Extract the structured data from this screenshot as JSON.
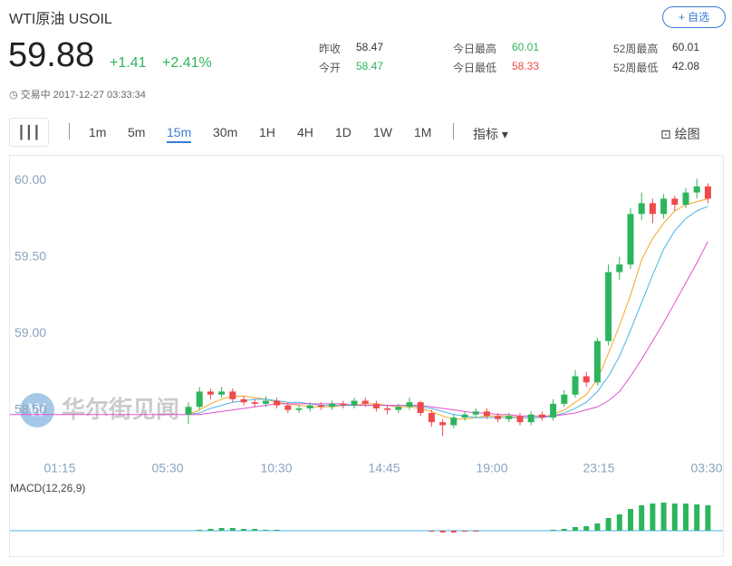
{
  "header": {
    "title": "WTI原油 USOIL",
    "watch_button": "+ 自选",
    "price": "59.88",
    "change": "+1.41",
    "change_pct": "+2.41%",
    "status": "交易中 2017-12-27 03:33:34",
    "stats": [
      {
        "label": "昨收",
        "value": 58.47
      },
      {
        "label": "今开",
        "value": 58.47
      },
      {
        "label": "今日最高",
        "value": 60.01
      },
      {
        "label": "今日最低",
        "value": 58.33
      },
      {
        "label": "52周最高",
        "value": 60.01
      },
      {
        "label": "52周最低",
        "value": 42.08
      }
    ]
  },
  "toolbar": {
    "periods": [
      "1m",
      "5m",
      "15m",
      "30m",
      "1H",
      "4H",
      "1D",
      "1W",
      "1M"
    ],
    "active": "15m",
    "indicator": "指标",
    "draw": "绘图"
  },
  "watermark": "华尔街见闻",
  "chart_data": [
    {
      "type": "candlestick",
      "x_labels": [
        "01:15",
        "05:30",
        "10:30",
        "14:45",
        "19:00",
        "23:15",
        "03:30"
      ],
      "ylim": [
        58.22,
        60.16
      ],
      "yticks": [
        {
          "value": 60,
          "label": "60.00"
        },
        {
          "value": 59.5,
          "label": "59.50"
        },
        {
          "value": 59,
          "label": "59.00"
        },
        {
          "value": 58.5,
          "label": "58.50"
        }
      ],
      "up_color": "#2db55d",
      "down_color": "#ef4b4b",
      "open": [
        58.47,
        58.52,
        58.62,
        58.6,
        58.62,
        58.57,
        58.55,
        58.54,
        58.56,
        58.53,
        58.5,
        58.51,
        58.53,
        58.52,
        58.54,
        58.53,
        58.56,
        58.54,
        58.51,
        58.5,
        58.52,
        58.55,
        58.48,
        58.42,
        58.4,
        58.45,
        58.47,
        58.49,
        58.46,
        58.44,
        58.46,
        58.42,
        58.47,
        58.45,
        58.54,
        58.6,
        58.72,
        58.68,
        58.95,
        59.4,
        59.45,
        59.78,
        59.85,
        59.78,
        59.88,
        59.84,
        59.92,
        59.96
      ],
      "high": [
        58.55,
        58.65,
        58.64,
        58.65,
        58.64,
        58.59,
        58.57,
        58.59,
        58.58,
        58.55,
        58.53,
        58.55,
        58.55,
        58.56,
        58.56,
        58.58,
        58.58,
        58.56,
        58.53,
        58.54,
        58.58,
        58.56,
        58.5,
        58.44,
        58.47,
        58.49,
        58.51,
        58.51,
        58.48,
        58.48,
        58.48,
        58.49,
        58.49,
        58.57,
        58.63,
        58.76,
        58.75,
        58.97,
        59.45,
        59.5,
        59.82,
        59.92,
        59.88,
        59.91,
        59.9,
        59.95,
        60.01,
        59.98
      ],
      "low": [
        58.41,
        58.5,
        58.57,
        58.58,
        58.55,
        58.53,
        58.52,
        58.52,
        58.51,
        58.48,
        58.48,
        58.49,
        58.5,
        58.5,
        58.51,
        58.51,
        58.52,
        58.49,
        58.47,
        58.48,
        58.5,
        58.46,
        58.39,
        58.33,
        58.38,
        58.43,
        58.45,
        58.44,
        58.42,
        58.42,
        58.4,
        58.4,
        58.43,
        58.43,
        58.52,
        58.58,
        58.65,
        58.66,
        58.92,
        59.35,
        59.42,
        59.74,
        59.72,
        59.75,
        59.8,
        59.82,
        59.88,
        59.85
      ],
      "close": [
        58.52,
        58.62,
        58.6,
        58.62,
        58.57,
        58.55,
        58.54,
        58.56,
        58.53,
        58.5,
        58.51,
        58.53,
        58.52,
        58.54,
        58.53,
        58.56,
        58.54,
        58.51,
        58.5,
        58.52,
        58.55,
        58.48,
        58.42,
        58.4,
        58.45,
        58.47,
        58.49,
        58.46,
        58.44,
        58.46,
        58.42,
        58.47,
        58.45,
        58.54,
        58.6,
        58.72,
        58.68,
        58.95,
        59.4,
        59.45,
        59.78,
        59.85,
        59.78,
        59.88,
        59.84,
        59.92,
        59.96,
        59.88
      ],
      "series": [
        {
          "color": "#f5a623",
          "values": [
            58.47,
            58.5,
            58.54,
            58.57,
            58.59,
            58.59,
            58.58,
            58.57,
            58.55,
            58.54,
            58.53,
            58.52,
            58.52,
            58.52,
            58.53,
            58.53,
            58.54,
            58.54,
            58.53,
            58.52,
            58.52,
            58.51,
            58.49,
            58.46,
            58.44,
            58.44,
            58.45,
            58.46,
            58.46,
            58.46,
            58.45,
            58.45,
            58.45,
            58.47,
            58.5,
            58.55,
            58.6,
            58.7,
            58.87,
            59.05,
            59.25,
            59.48,
            59.62,
            59.72,
            59.8,
            59.84,
            59.86,
            59.88
          ]
        },
        {
          "color": "#4ab3e6",
          "values": [
            58.47,
            58.48,
            58.51,
            58.53,
            58.55,
            58.56,
            58.57,
            58.57,
            58.56,
            58.55,
            58.55,
            58.54,
            58.53,
            58.53,
            58.53,
            58.53,
            58.53,
            58.53,
            58.53,
            58.53,
            58.53,
            58.52,
            58.51,
            58.49,
            58.47,
            58.46,
            58.45,
            58.45,
            58.45,
            58.45,
            58.45,
            58.45,
            58.45,
            58.46,
            58.48,
            58.51,
            58.55,
            58.62,
            58.72,
            58.85,
            59.02,
            59.2,
            59.38,
            59.55,
            59.67,
            59.75,
            59.8,
            59.83
          ]
        },
        {
          "color": "#e44fd0",
          "values": [
            58.47,
            58.47,
            58.48,
            58.49,
            58.5,
            58.51,
            58.52,
            58.53,
            58.54,
            58.54,
            58.54,
            58.54,
            58.54,
            58.54,
            58.54,
            58.53,
            58.53,
            58.53,
            58.53,
            58.53,
            58.53,
            58.53,
            58.52,
            58.51,
            58.5,
            58.49,
            58.48,
            58.48,
            58.47,
            58.47,
            58.46,
            58.46,
            58.46,
            58.46,
            58.47,
            58.48,
            58.5,
            58.52,
            58.56,
            58.62,
            58.72,
            58.83,
            58.95,
            59.07,
            59.2,
            59.33,
            59.46,
            59.6
          ]
        }
      ]
    },
    {
      "type": "macd",
      "title": "MACD(12,26,9)",
      "ylim": [
        -0.26,
        0.38
      ],
      "values": [
        0,
        0.01,
        0.02,
        0.03,
        0.03,
        0.02,
        0.02,
        0.01,
        0.01,
        0,
        0,
        0,
        0,
        0,
        0,
        0,
        0,
        0,
        0,
        0,
        0,
        0,
        -0.01,
        -0.02,
        -0.02,
        -0.01,
        -0.01,
        0,
        0,
        0,
        0,
        0,
        0,
        0.01,
        0.02,
        0.04,
        0.05,
        0.08,
        0.14,
        0.18,
        0.24,
        0.28,
        0.3,
        0.31,
        0.3,
        0.3,
        0.29,
        0.28
      ]
    }
  ]
}
